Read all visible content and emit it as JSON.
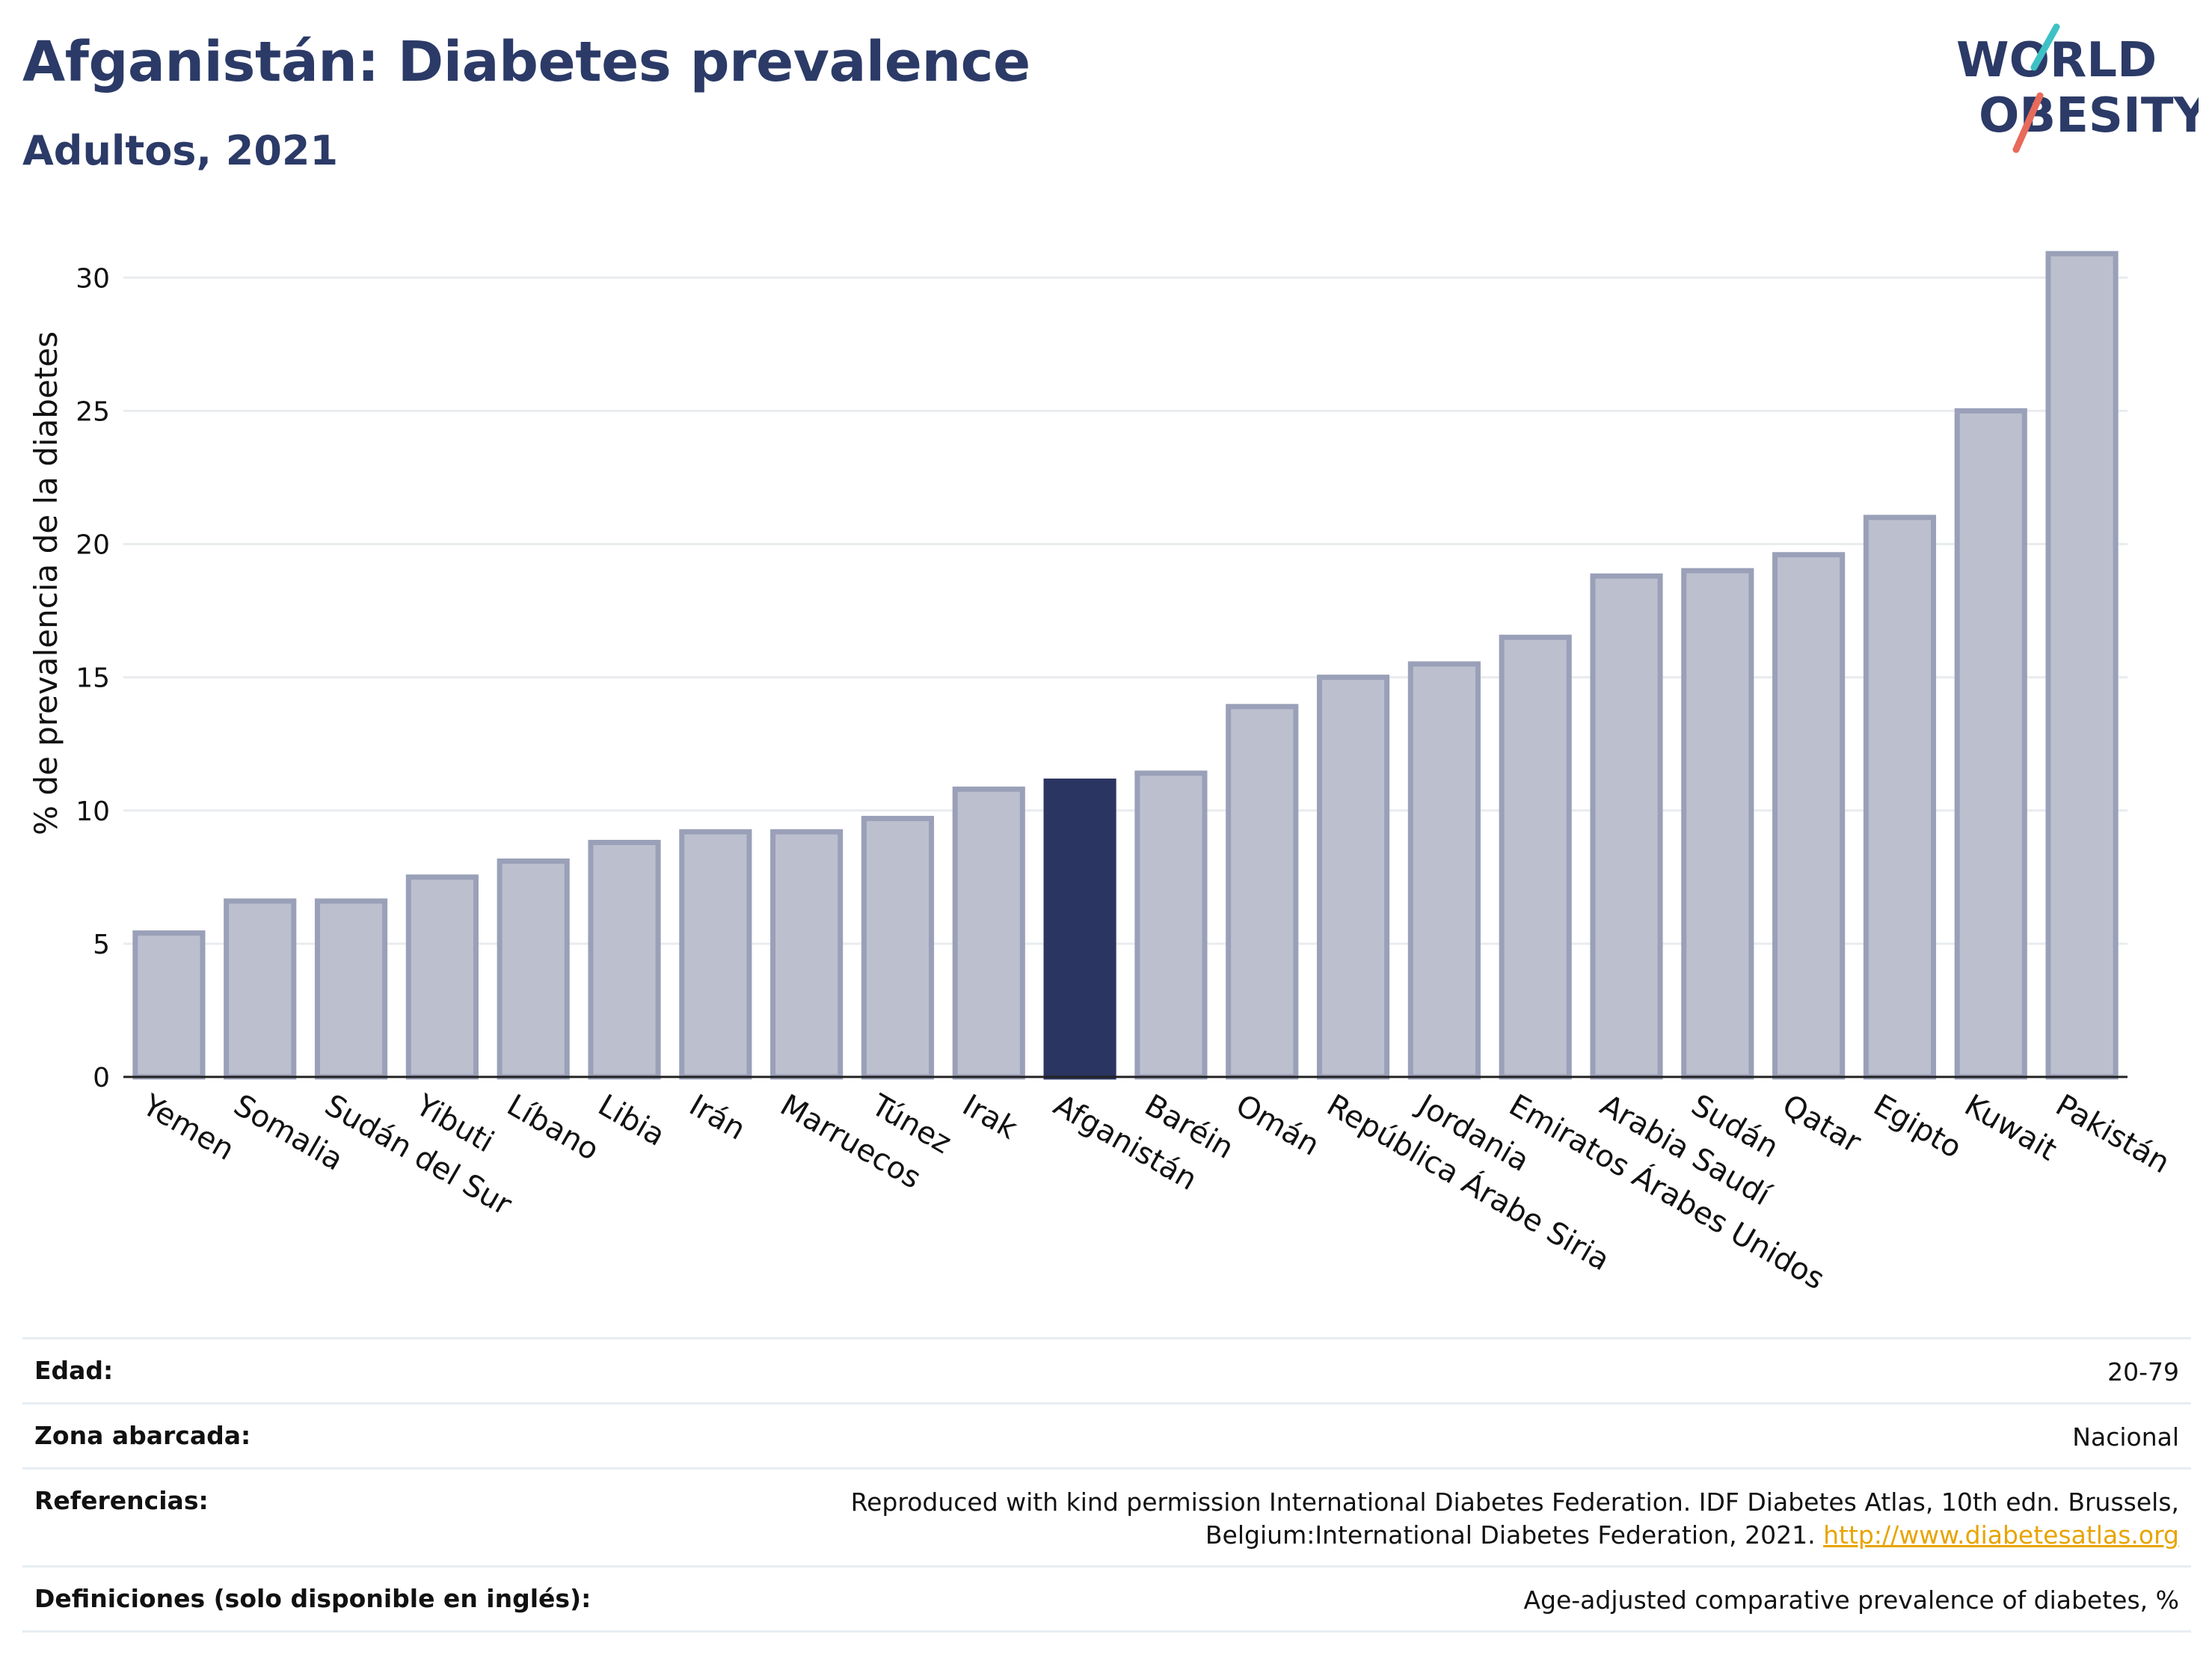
{
  "header": {
    "title": "Afganistán: Diabetes prevalence",
    "subtitle": "Adultos, 2021"
  },
  "logo": {
    "line1": "WORLD",
    "line2": "OBESITY",
    "brand_color": "#2b3a67",
    "slash_colors": [
      "#3ec1c5",
      "#e86a5a"
    ]
  },
  "colors": {
    "highlight_bar": "#2b3561",
    "bar_fill": "#bcc0ce",
    "bar_stroke": "#9aa0b8",
    "grid": "#e9ecef"
  },
  "chart_data": {
    "type": "bar",
    "ylabel": "% de prevalencia de la diabetes",
    "xlabel": "",
    "ylim": [
      0,
      32
    ],
    "yticks": [
      0,
      5,
      10,
      15,
      20,
      25,
      30
    ],
    "grid": true,
    "highlight": "Afganistán",
    "categories": [
      "Yemen",
      "Somalia",
      "Sudán del Sur",
      "Yibuti",
      "Líbano",
      "Libia",
      "Irán",
      "Marruecos",
      "Túnez",
      "Irak",
      "Afganistán",
      "Baréin",
      "Omán",
      "República Árabe Siria",
      "Jordania",
      "Emiratos Árabes Unidos",
      "Arabia Saudí",
      "Sudán",
      "Qatar",
      "Egipto",
      "Kuwait",
      "Pakistán"
    ],
    "values": [
      5.4,
      6.6,
      6.6,
      7.5,
      8.1,
      8.8,
      9.2,
      9.2,
      9.7,
      10.8,
      11.1,
      11.4,
      13.9,
      15.0,
      15.5,
      16.5,
      18.8,
      19.0,
      19.6,
      21.0,
      25.0,
      30.9
    ]
  },
  "info": {
    "rows": [
      {
        "key": "Edad:",
        "value": "20-79"
      },
      {
        "key": "Zona abarcada:",
        "value": "Nacional"
      },
      {
        "key": "Referencias:",
        "value": "Reproduced with kind permission International Diabetes Federation.  IDF Diabetes Atlas, 10th edn. Brussels, Belgium:International Diabetes Federation, 2021. ",
        "link": "http://www.diabetesatlas.org"
      },
      {
        "key": "Definiciones (solo disponible en inglés):",
        "value": "Age-adjusted comparative prevalence of diabetes, %"
      }
    ]
  }
}
